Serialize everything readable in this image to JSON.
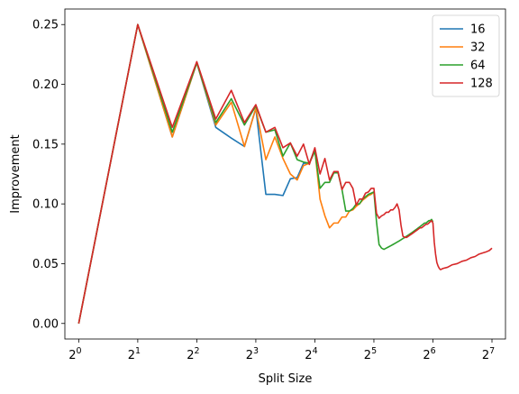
{
  "chart_data": {
    "type": "line",
    "title": "",
    "xlabel": "Split Size",
    "ylabel": "Improvement",
    "x_scale": "log2",
    "xlim": [
      0.85,
      150
    ],
    "ylim": [
      -0.013,
      0.263
    ],
    "x_ticks": [
      {
        "value": 1,
        "base": "2",
        "exp": "0"
      },
      {
        "value": 2,
        "base": "2",
        "exp": "1"
      },
      {
        "value": 4,
        "base": "2",
        "exp": "2"
      },
      {
        "value": 8,
        "base": "2",
        "exp": "3"
      },
      {
        "value": 16,
        "base": "2",
        "exp": "4"
      },
      {
        "value": 32,
        "base": "2",
        "exp": "5"
      },
      {
        "value": 64,
        "base": "2",
        "exp": "6"
      },
      {
        "value": 128,
        "base": "2",
        "exp": "7"
      }
    ],
    "y_ticks": [
      {
        "value": 0.0,
        "label": "0.00"
      },
      {
        "value": 0.05,
        "label": "0.05"
      },
      {
        "value": 0.1,
        "label": "0.10"
      },
      {
        "value": 0.15,
        "label": "0.15"
      },
      {
        "value": 0.2,
        "label": "0.20"
      },
      {
        "value": 0.25,
        "label": "0.25"
      }
    ],
    "grid": false,
    "legend_position": "top-right",
    "series": [
      {
        "name": "16",
        "color": "#1f77b4",
        "points": [
          [
            1,
            0.0
          ],
          [
            2,
            0.25
          ],
          [
            3,
            0.156
          ],
          [
            4,
            0.218
          ],
          [
            5,
            0.164
          ],
          [
            6,
            0.155
          ],
          [
            7,
            0.148
          ],
          [
            8,
            0.18
          ],
          [
            9,
            0.108
          ],
          [
            10,
            0.108
          ],
          [
            11,
            0.107
          ],
          [
            12,
            0.121
          ],
          [
            13,
            0.122
          ],
          [
            14,
            0.134
          ],
          [
            15,
            0.134
          ],
          [
            16,
            0.146
          ]
        ]
      },
      {
        "name": "32",
        "color": "#ff7f0e",
        "points": [
          [
            1,
            0.0
          ],
          [
            2,
            0.25
          ],
          [
            3,
            0.156
          ],
          [
            4,
            0.218
          ],
          [
            5,
            0.166
          ],
          [
            6,
            0.185
          ],
          [
            7,
            0.148
          ],
          [
            8,
            0.18
          ],
          [
            9,
            0.137
          ],
          [
            10,
            0.156
          ],
          [
            11,
            0.138
          ],
          [
            12,
            0.125
          ],
          [
            13,
            0.12
          ],
          [
            14,
            0.132
          ],
          [
            15,
            0.134
          ],
          [
            16,
            0.145
          ],
          [
            17,
            0.104
          ],
          [
            18,
            0.09
          ],
          [
            19,
            0.08
          ],
          [
            20,
            0.084
          ],
          [
            21,
            0.084
          ],
          [
            22,
            0.089
          ],
          [
            23,
            0.089
          ],
          [
            24,
            0.094
          ],
          [
            25,
            0.095
          ],
          [
            26,
            0.098
          ],
          [
            27,
            0.1
          ],
          [
            28,
            0.103
          ],
          [
            29,
            0.105
          ],
          [
            30,
            0.107
          ],
          [
            31,
            0.108
          ],
          [
            32,
            0.11
          ]
        ]
      },
      {
        "name": "64",
        "color": "#2ca02c",
        "points": [
          [
            1,
            0.0
          ],
          [
            2,
            0.25
          ],
          [
            3,
            0.16
          ],
          [
            4,
            0.218
          ],
          [
            5,
            0.168
          ],
          [
            6,
            0.188
          ],
          [
            7,
            0.166
          ],
          [
            8,
            0.182
          ],
          [
            9,
            0.16
          ],
          [
            10,
            0.162
          ],
          [
            11,
            0.14
          ],
          [
            12,
            0.151
          ],
          [
            13,
            0.137
          ],
          [
            14,
            0.135
          ],
          [
            15,
            0.134
          ],
          [
            16,
            0.144
          ],
          [
            17,
            0.113
          ],
          [
            18,
            0.118
          ],
          [
            19,
            0.118
          ],
          [
            20,
            0.126
          ],
          [
            21,
            0.126
          ],
          [
            22,
            0.112
          ],
          [
            23,
            0.094
          ],
          [
            24,
            0.094
          ],
          [
            25,
            0.096
          ],
          [
            26,
            0.1
          ],
          [
            27,
            0.1
          ],
          [
            28,
            0.104
          ],
          [
            29,
            0.106
          ],
          [
            30,
            0.108
          ],
          [
            31,
            0.109
          ],
          [
            32,
            0.11
          ],
          [
            33,
            0.085
          ],
          [
            34,
            0.066
          ],
          [
            35,
            0.063
          ],
          [
            36,
            0.062
          ],
          [
            37,
            0.063
          ],
          [
            38,
            0.064
          ],
          [
            39,
            0.065
          ],
          [
            40,
            0.066
          ],
          [
            41,
            0.067
          ],
          [
            42,
            0.068
          ],
          [
            43,
            0.069
          ],
          [
            44,
            0.07
          ],
          [
            45,
            0.071
          ],
          [
            46,
            0.072
          ],
          [
            47,
            0.073
          ],
          [
            48,
            0.074
          ],
          [
            49,
            0.075
          ],
          [
            50,
            0.076
          ],
          [
            51,
            0.077
          ],
          [
            52,
            0.078
          ],
          [
            53,
            0.079
          ],
          [
            54,
            0.08
          ],
          [
            55,
            0.081
          ],
          [
            56,
            0.082
          ],
          [
            57,
            0.083
          ],
          [
            58,
            0.084
          ],
          [
            59,
            0.084
          ],
          [
            60,
            0.085
          ],
          [
            61,
            0.086
          ],
          [
            62,
            0.086
          ],
          [
            63,
            0.087
          ],
          [
            64,
            0.085
          ]
        ]
      },
      {
        "name": "128",
        "color": "#d62728",
        "points": [
          [
            1,
            0.0
          ],
          [
            2,
            0.25
          ],
          [
            3,
            0.164
          ],
          [
            4,
            0.219
          ],
          [
            5,
            0.171
          ],
          [
            6,
            0.195
          ],
          [
            7,
            0.168
          ],
          [
            8,
            0.183
          ],
          [
            9,
            0.16
          ],
          [
            10,
            0.164
          ],
          [
            11,
            0.147
          ],
          [
            12,
            0.151
          ],
          [
            13,
            0.14
          ],
          [
            14,
            0.15
          ],
          [
            15,
            0.133
          ],
          [
            16,
            0.147
          ],
          [
            17,
            0.125
          ],
          [
            18,
            0.138
          ],
          [
            19,
            0.12
          ],
          [
            20,
            0.127
          ],
          [
            21,
            0.127
          ],
          [
            22,
            0.112
          ],
          [
            23,
            0.118
          ],
          [
            24,
            0.118
          ],
          [
            25,
            0.113
          ],
          [
            26,
            0.099
          ],
          [
            27,
            0.104
          ],
          [
            28,
            0.104
          ],
          [
            29,
            0.109
          ],
          [
            30,
            0.11
          ],
          [
            31,
            0.113
          ],
          [
            32,
            0.113
          ],
          [
            33,
            0.092
          ],
          [
            34,
            0.088
          ],
          [
            35,
            0.09
          ],
          [
            36,
            0.091
          ],
          [
            37,
            0.093
          ],
          [
            38,
            0.093
          ],
          [
            39,
            0.095
          ],
          [
            40,
            0.095
          ],
          [
            41,
            0.097
          ],
          [
            42,
            0.1
          ],
          [
            43,
            0.095
          ],
          [
            44,
            0.082
          ],
          [
            45,
            0.073
          ],
          [
            46,
            0.072
          ],
          [
            47,
            0.072
          ],
          [
            48,
            0.073
          ],
          [
            49,
            0.074
          ],
          [
            50,
            0.075
          ],
          [
            51,
            0.076
          ],
          [
            52,
            0.077
          ],
          [
            53,
            0.078
          ],
          [
            54,
            0.079
          ],
          [
            55,
            0.08
          ],
          [
            56,
            0.08
          ],
          [
            57,
            0.081
          ],
          [
            58,
            0.082
          ],
          [
            59,
            0.083
          ],
          [
            60,
            0.083
          ],
          [
            61,
            0.084
          ],
          [
            62,
            0.085
          ],
          [
            63,
            0.086
          ],
          [
            64,
            0.084
          ],
          [
            65,
            0.068
          ],
          [
            66,
            0.058
          ],
          [
            67,
            0.051
          ],
          [
            68,
            0.048
          ],
          [
            69,
            0.046
          ],
          [
            70,
            0.045
          ],
          [
            72,
            0.046
          ],
          [
            76,
            0.047
          ],
          [
            80,
            0.049
          ],
          [
            85,
            0.05
          ],
          [
            90,
            0.052
          ],
          [
            95,
            0.053
          ],
          [
            100,
            0.055
          ],
          [
            105,
            0.056
          ],
          [
            110,
            0.058
          ],
          [
            115,
            0.059
          ],
          [
            120,
            0.06
          ],
          [
            124,
            0.061
          ],
          [
            128,
            0.063
          ]
        ]
      }
    ]
  }
}
